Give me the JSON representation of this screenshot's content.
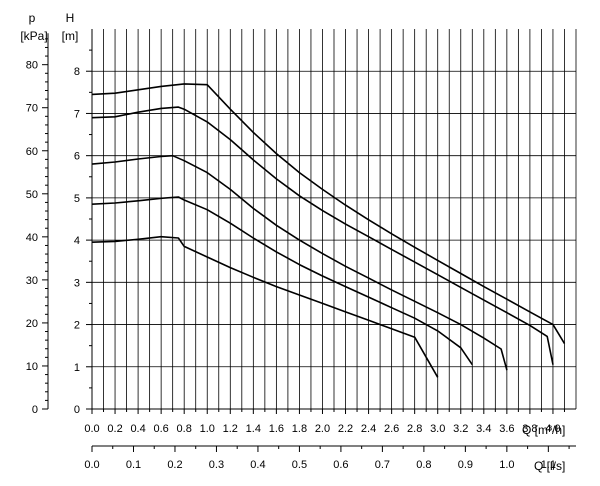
{
  "chart_data": {
    "type": "line",
    "left_axis_label_p": "p",
    "left_axis_unit_p": "[kPa]",
    "left_axis_label_h": "H",
    "left_axis_unit_h": "[m]",
    "p_ticks": [
      "0",
      "10",
      "20",
      "30",
      "40",
      "50",
      "60",
      "70",
      "80"
    ],
    "h_ticks": [
      "0",
      "1",
      "2",
      "3",
      "4",
      "5",
      "6",
      "7",
      "8"
    ],
    "q_m3h_ticks": [
      "0.0",
      "0.2",
      "0.4",
      "0.6",
      "0.8",
      "1.0",
      "1.2",
      "1.4",
      "1.6",
      "1.8",
      "2.0",
      "2.2",
      "2.4",
      "2.6",
      "2.8",
      "3.0",
      "3.2",
      "3.4",
      "3.6",
      "3.8",
      "4.0"
    ],
    "q_m3h_label": "Q [m³/h]",
    "q_ls_ticks": [
      "0.0",
      "0.1",
      "0.2",
      "0.3",
      "0.4",
      "0.5",
      "0.6",
      "0.7",
      "0.8",
      "0.9",
      "1.0",
      "1.1"
    ],
    "q_ls_label": "Q [l/s]",
    "xlim_m3h": [
      0,
      4.2
    ],
    "ylim_m": [
      0,
      9
    ],
    "p_per_m": 9.81,
    "ls_per_m3h": 0.27778,
    "grid": true,
    "series": [
      {
        "points": [
          [
            0,
            3.95
          ],
          [
            0.2,
            3.97
          ],
          [
            0.4,
            4.02
          ],
          [
            0.6,
            4.08
          ],
          [
            0.75,
            4.05
          ],
          [
            0.8,
            3.85
          ],
          [
            1.0,
            3.6
          ],
          [
            1.2,
            3.35
          ],
          [
            1.4,
            3.12
          ],
          [
            1.6,
            2.9
          ],
          [
            1.8,
            2.7
          ],
          [
            2.0,
            2.5
          ],
          [
            2.2,
            2.3
          ],
          [
            2.4,
            2.1
          ],
          [
            2.6,
            1.9
          ],
          [
            2.8,
            1.7
          ],
          [
            3.0,
            0.75
          ]
        ]
      },
      {
        "points": [
          [
            0,
            4.85
          ],
          [
            0.2,
            4.88
          ],
          [
            0.4,
            4.93
          ],
          [
            0.6,
            4.99
          ],
          [
            0.75,
            5.02
          ],
          [
            0.8,
            4.95
          ],
          [
            1.0,
            4.72
          ],
          [
            1.2,
            4.4
          ],
          [
            1.4,
            4.05
          ],
          [
            1.6,
            3.72
          ],
          [
            1.8,
            3.42
          ],
          [
            2.0,
            3.15
          ],
          [
            2.2,
            2.9
          ],
          [
            2.4,
            2.65
          ],
          [
            2.6,
            2.4
          ],
          [
            2.8,
            2.15
          ],
          [
            3.0,
            1.85
          ],
          [
            3.2,
            1.45
          ],
          [
            3.3,
            1.05
          ]
        ]
      },
      {
        "points": [
          [
            0,
            5.8
          ],
          [
            0.2,
            5.85
          ],
          [
            0.4,
            5.92
          ],
          [
            0.6,
            5.98
          ],
          [
            0.7,
            6.0
          ],
          [
            0.8,
            5.88
          ],
          [
            1.0,
            5.6
          ],
          [
            1.2,
            5.2
          ],
          [
            1.4,
            4.75
          ],
          [
            1.6,
            4.35
          ],
          [
            1.8,
            4.0
          ],
          [
            2.0,
            3.68
          ],
          [
            2.2,
            3.38
          ],
          [
            2.4,
            3.1
          ],
          [
            2.6,
            2.82
          ],
          [
            2.8,
            2.55
          ],
          [
            3.0,
            2.28
          ],
          [
            3.2,
            2.0
          ],
          [
            3.4,
            1.68
          ],
          [
            3.55,
            1.42
          ],
          [
            3.6,
            0.92
          ]
        ]
      },
      {
        "points": [
          [
            0,
            6.9
          ],
          [
            0.2,
            6.92
          ],
          [
            0.4,
            7.03
          ],
          [
            0.6,
            7.12
          ],
          [
            0.75,
            7.15
          ],
          [
            0.8,
            7.1
          ],
          [
            1.0,
            6.8
          ],
          [
            1.2,
            6.38
          ],
          [
            1.4,
            5.9
          ],
          [
            1.6,
            5.45
          ],
          [
            1.8,
            5.05
          ],
          [
            2.0,
            4.7
          ],
          [
            2.2,
            4.38
          ],
          [
            2.4,
            4.08
          ],
          [
            2.6,
            3.78
          ],
          [
            2.8,
            3.48
          ],
          [
            3.0,
            3.18
          ],
          [
            3.2,
            2.88
          ],
          [
            3.4,
            2.58
          ],
          [
            3.6,
            2.28
          ],
          [
            3.8,
            1.98
          ],
          [
            3.95,
            1.72
          ],
          [
            4.0,
            1.05
          ]
        ]
      },
      {
        "points": [
          [
            0,
            7.45
          ],
          [
            0.2,
            7.48
          ],
          [
            0.4,
            7.56
          ],
          [
            0.6,
            7.64
          ],
          [
            0.8,
            7.7
          ],
          [
            1.0,
            7.68
          ],
          [
            1.2,
            7.1
          ],
          [
            1.4,
            6.55
          ],
          [
            1.6,
            6.05
          ],
          [
            1.8,
            5.6
          ],
          [
            2.0,
            5.2
          ],
          [
            2.2,
            4.83
          ],
          [
            2.4,
            4.48
          ],
          [
            2.6,
            4.15
          ],
          [
            2.8,
            3.83
          ],
          [
            3.0,
            3.52
          ],
          [
            3.2,
            3.21
          ],
          [
            3.4,
            2.9
          ],
          [
            3.6,
            2.6
          ],
          [
            3.8,
            2.3
          ],
          [
            4.0,
            2.0
          ],
          [
            4.1,
            1.55
          ]
        ]
      }
    ]
  }
}
